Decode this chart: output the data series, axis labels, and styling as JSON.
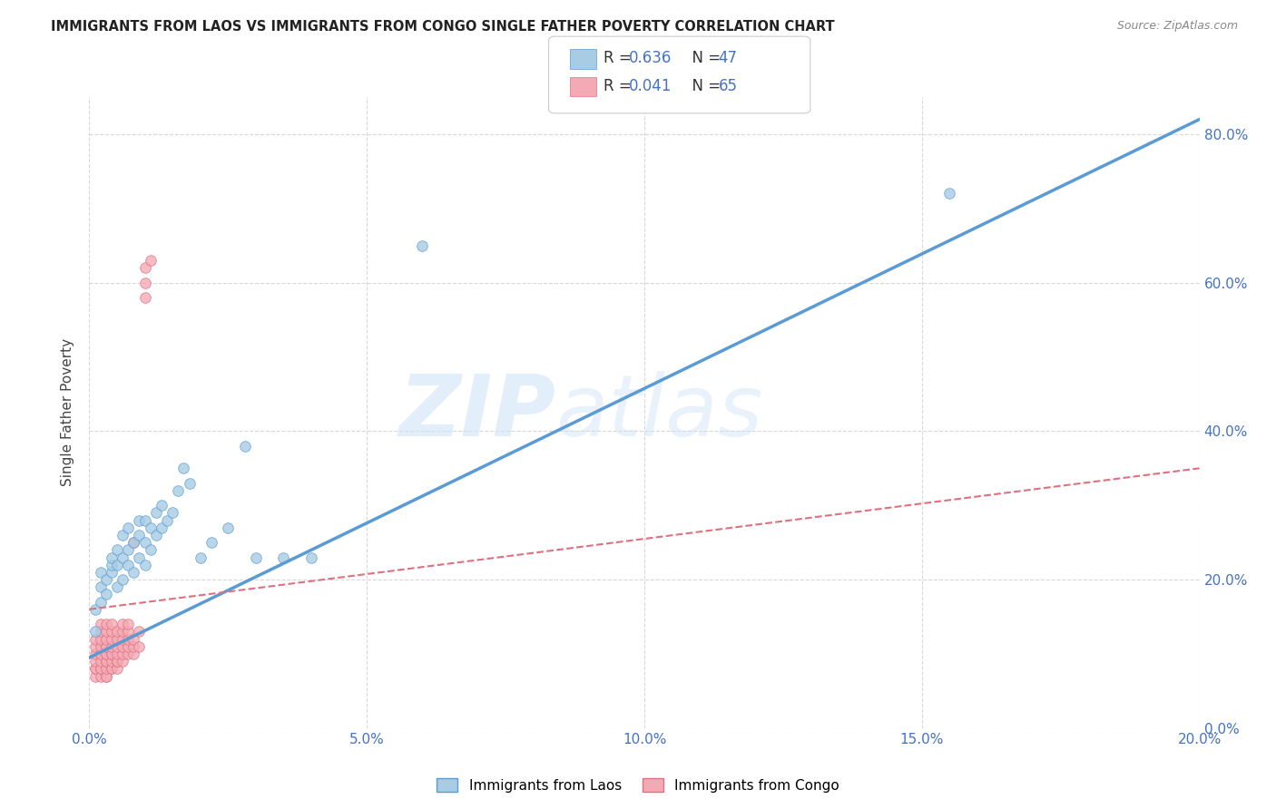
{
  "title": "IMMIGRANTS FROM LAOS VS IMMIGRANTS FROM CONGO SINGLE FATHER POVERTY CORRELATION CHART",
  "source": "Source: ZipAtlas.com",
  "ylabel": "Single Father Poverty",
  "x_min": 0.0,
  "x_max": 0.2,
  "y_min": 0.0,
  "y_max": 0.85,
  "laos_color": "#a8cce4",
  "laos_color_dark": "#5b9bd5",
  "congo_color": "#f4aab5",
  "congo_color_dark": "#e07080",
  "laos_R": "0.636",
  "laos_N": "47",
  "congo_R": "0.041",
  "congo_N": "65",
  "laos_label": "Immigrants from Laos",
  "congo_label": "Immigrants from Congo",
  "legend_value_color": "#4472c4",
  "watermark_zip": "ZIP",
  "watermark_atlas": "atlas",
  "grid_color": "#d8d8d8",
  "background_color": "#ffffff",
  "axis_label_color": "#4472c4",
  "laos_scatter_x": [
    0.001,
    0.001,
    0.002,
    0.002,
    0.002,
    0.003,
    0.003,
    0.004,
    0.004,
    0.004,
    0.005,
    0.005,
    0.005,
    0.006,
    0.006,
    0.006,
    0.007,
    0.007,
    0.007,
    0.008,
    0.008,
    0.009,
    0.009,
    0.009,
    0.01,
    0.01,
    0.01,
    0.011,
    0.011,
    0.012,
    0.012,
    0.013,
    0.013,
    0.014,
    0.015,
    0.016,
    0.017,
    0.018,
    0.02,
    0.022,
    0.025,
    0.028,
    0.03,
    0.035,
    0.04,
    0.06,
    0.155
  ],
  "laos_scatter_y": [
    0.13,
    0.16,
    0.17,
    0.19,
    0.21,
    0.18,
    0.2,
    0.21,
    0.22,
    0.23,
    0.19,
    0.22,
    0.24,
    0.2,
    0.23,
    0.26,
    0.22,
    0.24,
    0.27,
    0.21,
    0.25,
    0.23,
    0.26,
    0.28,
    0.22,
    0.25,
    0.28,
    0.24,
    0.27,
    0.26,
    0.29,
    0.27,
    0.3,
    0.28,
    0.29,
    0.32,
    0.35,
    0.33,
    0.23,
    0.25,
    0.27,
    0.38,
    0.23,
    0.23,
    0.23,
    0.65,
    0.72
  ],
  "congo_scatter_x": [
    0.001,
    0.001,
    0.001,
    0.001,
    0.001,
    0.001,
    0.001,
    0.002,
    0.002,
    0.002,
    0.002,
    0.002,
    0.002,
    0.002,
    0.002,
    0.002,
    0.003,
    0.003,
    0.003,
    0.003,
    0.003,
    0.003,
    0.003,
    0.003,
    0.003,
    0.003,
    0.003,
    0.003,
    0.004,
    0.004,
    0.004,
    0.004,
    0.004,
    0.004,
    0.004,
    0.004,
    0.004,
    0.005,
    0.005,
    0.005,
    0.005,
    0.005,
    0.005,
    0.005,
    0.006,
    0.006,
    0.006,
    0.006,
    0.006,
    0.006,
    0.007,
    0.007,
    0.007,
    0.007,
    0.007,
    0.008,
    0.008,
    0.008,
    0.008,
    0.009,
    0.009,
    0.01,
    0.01,
    0.01,
    0.011
  ],
  "congo_scatter_y": [
    0.07,
    0.08,
    0.08,
    0.09,
    0.1,
    0.11,
    0.12,
    0.07,
    0.08,
    0.08,
    0.09,
    0.1,
    0.11,
    0.12,
    0.13,
    0.14,
    0.07,
    0.07,
    0.08,
    0.09,
    0.09,
    0.1,
    0.1,
    0.11,
    0.11,
    0.12,
    0.13,
    0.14,
    0.08,
    0.08,
    0.09,
    0.1,
    0.1,
    0.11,
    0.12,
    0.13,
    0.14,
    0.08,
    0.09,
    0.09,
    0.1,
    0.11,
    0.12,
    0.13,
    0.09,
    0.1,
    0.11,
    0.12,
    0.13,
    0.14,
    0.1,
    0.11,
    0.12,
    0.13,
    0.14,
    0.1,
    0.11,
    0.12,
    0.25,
    0.11,
    0.13,
    0.58,
    0.6,
    0.62,
    0.63
  ],
  "laos_trend_x": [
    0.0,
    0.2
  ],
  "laos_trend_y": [
    0.095,
    0.82
  ],
  "congo_trend_x": [
    0.0,
    0.2
  ],
  "congo_trend_y": [
    0.16,
    0.35
  ],
  "x_ticks": [
    0.0,
    0.05,
    0.1,
    0.15,
    0.2
  ],
  "x_tick_labels": [
    "0.0%",
    "5.0%",
    "10.0%",
    "15.0%",
    "20.0%"
  ],
  "y_ticks": [
    0.0,
    0.2,
    0.4,
    0.6,
    0.8
  ],
  "y_tick_labels": [
    "0.0%",
    "20.0%",
    "40.0%",
    "60.0%",
    "80.0%"
  ]
}
